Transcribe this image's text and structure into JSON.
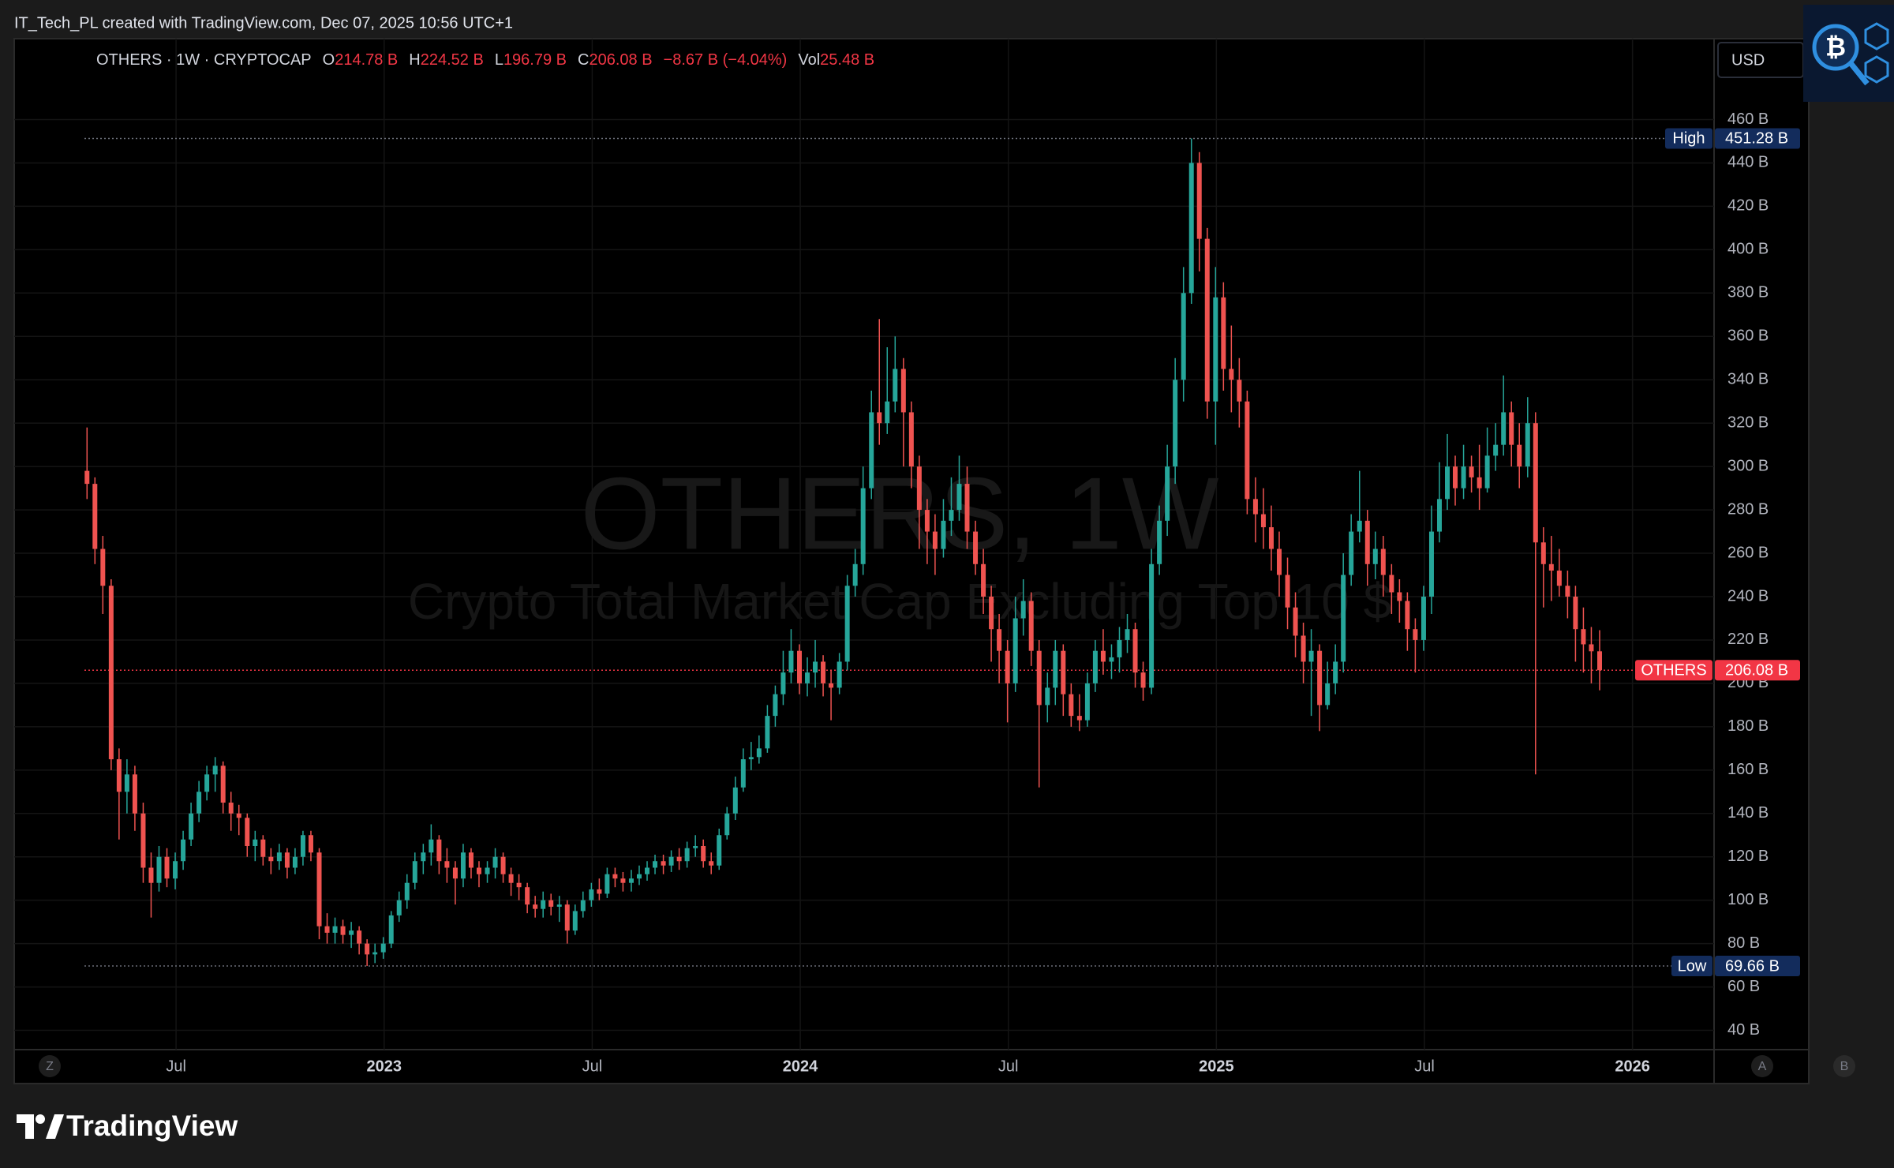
{
  "header": {
    "author_line": "IT_Tech_PL created with TradingView.com, Dec 07, 2025 10:56 UTC+1",
    "logo_symbol": "₿"
  },
  "legend": {
    "symbol": "OTHERS · 1W · CRYPTOCAP",
    "open_label": "O",
    "open": "214.78 B",
    "high_label": "H",
    "high": "224.52 B",
    "low_label": "L",
    "low": "196.79 B",
    "close_label": "C",
    "close": "206.08 B",
    "change": "−8.67 B (−4.04%)",
    "volume_label": "Vol",
    "volume": "25.48 B"
  },
  "toolbar": {
    "currency": "USD",
    "buttons": [
      "Z",
      "A",
      "B"
    ]
  },
  "footer": {
    "brand": "TradingView"
  },
  "chart_data": {
    "type": "candlestick",
    "title": "OTHERS, 1W",
    "subtitle": "Crypto Total Market Cap Excluding Top 10 $",
    "up_color": "#26a69a",
    "down_color": "#ef5350",
    "grid": true,
    "xlim": [
      2022.111,
      2026.196
    ],
    "xticks": [
      {
        "value": 2022.5,
        "label": "Jul"
      },
      2023,
      {
        "value": 2023.5,
        "label": "Jul"
      },
      2024,
      {
        "value": 2024.5,
        "label": "Jul"
      },
      2025,
      {
        "value": 2025.5,
        "label": "Jul"
      },
      2026
    ],
    "ylim": [
      31.1,
      497.3
    ],
    "yticks": [
      {
        "value": 40,
        "label": "40 B"
      },
      {
        "value": 60,
        "label": "60 B"
      },
      {
        "value": 80,
        "label": "80 B"
      },
      {
        "value": 100,
        "label": "100 B"
      },
      {
        "value": 120,
        "label": "120 B"
      },
      {
        "value": 140,
        "label": "140 B"
      },
      {
        "value": 160,
        "label": "160 B"
      },
      {
        "value": 180,
        "label": "180 B"
      },
      {
        "value": 200,
        "label": "200 B"
      },
      {
        "value": 220,
        "label": "220 B"
      },
      {
        "value": 240,
        "label": "240 B"
      },
      {
        "value": 260,
        "label": "260 B"
      },
      {
        "value": 280,
        "label": "280 B"
      },
      {
        "value": 300,
        "label": "300 B"
      },
      {
        "value": 320,
        "label": "320 B"
      },
      {
        "value": 340,
        "label": "340 B"
      },
      {
        "value": 360,
        "label": "360 B"
      },
      {
        "value": 380,
        "label": "380 B"
      },
      {
        "value": 400,
        "label": "400 B"
      },
      {
        "value": 420,
        "label": "420 B"
      },
      {
        "value": 440,
        "label": "440 B"
      },
      {
        "value": 460,
        "label": "460 B"
      }
    ],
    "high_marker": {
      "label": "High",
      "value": 451.28,
      "value_label": "451.28 B"
    },
    "low_marker": {
      "label": "Low",
      "value": 69.66,
      "value_label": "69.66 B"
    },
    "last_price": {
      "label": "OTHERS",
      "value": 206.08,
      "value_label": "206.08 B"
    },
    "x": [
      2022.286,
      2022.305,
      2022.324,
      2022.344,
      2022.363,
      2022.382,
      2022.401,
      2022.421,
      2022.44,
      2022.459,
      2022.478,
      2022.498,
      2022.517,
      2022.536,
      2022.555,
      2022.574,
      2022.594,
      2022.613,
      2022.632,
      2022.651,
      2022.671,
      2022.69,
      2022.709,
      2022.728,
      2022.748,
      2022.767,
      2022.786,
      2022.805,
      2022.824,
      2022.844,
      2022.863,
      2022.882,
      2022.901,
      2022.921,
      2022.94,
      2022.959,
      2022.978,
      2022.998,
      2023.017,
      2023.036,
      2023.055,
      2023.074,
      2023.094,
      2023.113,
      2023.132,
      2023.151,
      2023.171,
      2023.19,
      2023.209,
      2023.228,
      2023.248,
      2023.267,
      2023.286,
      2023.305,
      2023.324,
      2023.344,
      2023.363,
      2023.382,
      2023.401,
      2023.421,
      2023.44,
      2023.459,
      2023.478,
      2023.498,
      2023.517,
      2023.536,
      2023.555,
      2023.574,
      2023.594,
      2023.613,
      2023.632,
      2023.651,
      2023.671,
      2023.69,
      2023.709,
      2023.728,
      2023.748,
      2023.767,
      2023.786,
      2023.805,
      2023.824,
      2023.844,
      2023.863,
      2023.882,
      2023.901,
      2023.921,
      2023.94,
      2023.959,
      2023.978,
      2023.998,
      2024.017,
      2024.036,
      2024.055,
      2024.074,
      2024.094,
      2024.113,
      2024.132,
      2024.151,
      2024.171,
      2024.19,
      2024.209,
      2024.228,
      2024.248,
      2024.267,
      2024.286,
      2024.305,
      2024.324,
      2024.344,
      2024.363,
      2024.382,
      2024.401,
      2024.421,
      2024.44,
      2024.459,
      2024.478,
      2024.498,
      2024.517,
      2024.536,
      2024.555,
      2024.574,
      2024.594,
      2024.613,
      2024.632,
      2024.651,
      2024.671,
      2024.69,
      2024.709,
      2024.728,
      2024.748,
      2024.767,
      2024.786,
      2024.805,
      2024.824,
      2024.844,
      2024.863,
      2024.882,
      2024.901,
      2024.921,
      2024.94,
      2024.959,
      2024.978,
      2024.998,
      2025.017,
      2025.036,
      2025.055,
      2025.074,
      2025.094,
      2025.113,
      2025.132,
      2025.151,
      2025.171,
      2025.19,
      2025.209,
      2025.228,
      2025.248,
      2025.267,
      2025.286,
      2025.305,
      2025.324,
      2025.344,
      2025.363,
      2025.382,
      2025.401,
      2025.421,
      2025.44,
      2025.459,
      2025.478,
      2025.498,
      2025.517,
      2025.536,
      2025.555,
      2025.574,
      2025.594,
      2025.613,
      2025.632,
      2025.651,
      2025.671,
      2025.69,
      2025.709,
      2025.728,
      2025.748,
      2025.767,
      2025.786,
      2025.805,
      2025.824,
      2025.844,
      2025.863,
      2025.882,
      2025.901,
      2025.921
    ],
    "open": [
      298,
      292,
      262,
      245,
      165,
      150,
      158,
      140,
      115,
      108,
      120,
      110,
      118,
      128,
      140,
      150,
      158,
      162,
      145,
      140,
      138,
      125,
      128,
      120,
      118,
      122,
      115,
      120,
      130,
      122,
      88,
      85,
      88,
      84,
      86,
      80,
      75,
      76,
      80,
      93,
      100,
      108,
      118,
      122,
      128,
      118,
      115,
      110,
      122,
      115,
      112,
      115,
      120,
      112,
      108,
      106,
      98,
      96,
      100,
      97,
      98,
      86,
      95,
      100,
      105,
      103,
      112,
      110,
      108,
      110,
      112,
      115,
      118,
      116,
      120,
      118,
      124,
      125,
      118,
      116,
      130,
      140,
      152,
      165,
      166,
      170,
      185,
      195,
      205,
      215,
      200,
      205,
      210,
      200,
      198,
      210,
      245,
      255,
      290,
      325,
      320,
      330,
      345,
      325,
      300,
      280,
      270,
      262,
      275,
      280,
      292,
      270,
      255,
      240,
      225,
      215,
      200,
      230,
      238,
      215,
      190,
      198,
      215,
      195,
      185,
      183,
      200,
      215,
      210,
      212,
      220,
      225,
      205,
      198,
      255,
      275,
      300,
      340,
      380,
      440,
      405,
      330,
      378,
      345,
      340,
      330,
      285,
      278,
      272,
      262,
      250,
      235,
      222,
      210,
      215,
      190,
      200,
      210,
      250,
      270,
      275,
      255,
      262,
      250,
      242,
      238,
      225,
      220,
      240,
      270,
      285,
      300,
      290,
      300,
      295,
      290,
      305,
      310,
      325,
      310,
      300,
      320,
      265,
      255,
      252,
      245,
      240,
      225,
      218,
      214.78
    ],
    "high": [
      318,
      295,
      268,
      248,
      170,
      165,
      162,
      145,
      122,
      125,
      124,
      122,
      132,
      145,
      155,
      162,
      166,
      164,
      150,
      144,
      140,
      132,
      130,
      124,
      126,
      124,
      124,
      132,
      132,
      124,
      94,
      92,
      91,
      90,
      88,
      82,
      80,
      83,
      95,
      104,
      112,
      122,
      126,
      135,
      130,
      124,
      118,
      126,
      124,
      118,
      118,
      124,
      122,
      115,
      112,
      108,
      102,
      104,
      103,
      102,
      100,
      98,
      104,
      108,
      110,
      115,
      115,
      113,
      114,
      116,
      118,
      121,
      121,
      123,
      124,
      127,
      130,
      128,
      122,
      133,
      143,
      157,
      170,
      173,
      176,
      190,
      199,
      215,
      225,
      218,
      212,
      220,
      213,
      206,
      214,
      250,
      262,
      300,
      335,
      368,
      355,
      360,
      350,
      330,
      305,
      285,
      278,
      285,
      295,
      305,
      300,
      275,
      262,
      245,
      232,
      220,
      240,
      248,
      242,
      220,
      205,
      220,
      218,
      200,
      195,
      205,
      220,
      225,
      218,
      226,
      232,
      228,
      210,
      262,
      282,
      310,
      350,
      392,
      451.28,
      445,
      410,
      392,
      385,
      365,
      350,
      335,
      295,
      290,
      282,
      270,
      258,
      242,
      228,
      225,
      218,
      210,
      218,
      260,
      278,
      298,
      280,
      270,
      268,
      255,
      248,
      242,
      230,
      245,
      282,
      302,
      315,
      305,
      310,
      305,
      310,
      318,
      320,
      342,
      330,
      320,
      332,
      325,
      272,
      268,
      262,
      252,
      245,
      235,
      226,
      224.52
    ],
    "low": [
      285,
      255,
      232,
      160,
      128,
      140,
      132,
      108,
      92,
      104,
      106,
      105,
      114,
      125,
      136,
      146,
      150,
      140,
      132,
      130,
      120,
      118,
      116,
      112,
      114,
      110,
      112,
      116,
      118,
      82,
      80,
      80,
      80,
      78,
      75,
      69.66,
      71,
      73,
      78,
      90,
      96,
      105,
      112,
      116,
      112,
      108,
      98,
      106,
      110,
      106,
      108,
      110,
      108,
      102,
      100,
      94,
      92,
      92,
      93,
      90,
      80,
      84,
      92,
      97,
      100,
      101,
      106,
      104,
      104,
      107,
      109,
      112,
      112,
      113,
      114,
      115,
      120,
      115,
      112,
      114,
      128,
      137,
      150,
      160,
      163,
      168,
      180,
      190,
      200,
      195,
      194,
      198,
      194,
      183,
      195,
      206,
      240,
      250,
      285,
      310,
      315,
      325,
      300,
      290,
      262,
      255,
      250,
      258,
      268,
      275,
      262,
      250,
      232,
      210,
      200,
      182,
      196,
      222,
      208,
      152,
      182,
      190,
      185,
      180,
      178,
      180,
      196,
      204,
      202,
      205,
      214,
      198,
      192,
      195,
      250,
      268,
      292,
      330,
      375,
      390,
      322,
      310,
      335,
      325,
      318,
      278,
      265,
      262,
      252,
      240,
      225,
      212,
      200,
      185,
      178,
      188,
      195,
      205,
      245,
      265,
      245,
      248,
      240,
      232,
      228,
      215,
      205,
      215,
      232,
      265,
      280,
      282,
      285,
      288,
      280,
      288,
      298,
      305,
      300,
      290,
      295,
      158,
      235,
      238,
      240,
      230,
      210,
      205,
      200,
      196.79
    ],
    "close": [
      292,
      262,
      245,
      165,
      150,
      158,
      140,
      115,
      108,
      120,
      110,
      118,
      128,
      140,
      150,
      158,
      162,
      145,
      140,
      138,
      125,
      128,
      120,
      118,
      122,
      115,
      120,
      130,
      122,
      88,
      85,
      88,
      84,
      86,
      80,
      75,
      76,
      80,
      93,
      100,
      108,
      118,
      122,
      128,
      118,
      115,
      110,
      122,
      115,
      112,
      115,
      120,
      112,
      108,
      106,
      98,
      96,
      100,
      97,
      98,
      86,
      95,
      100,
      105,
      103,
      112,
      110,
      108,
      110,
      112,
      115,
      118,
      116,
      120,
      118,
      124,
      125,
      118,
      116,
      130,
      140,
      152,
      165,
      166,
      170,
      185,
      195,
      205,
      215,
      200,
      205,
      210,
      200,
      198,
      210,
      245,
      255,
      290,
      325,
      320,
      330,
      345,
      325,
      300,
      280,
      270,
      262,
      275,
      280,
      292,
      270,
      255,
      240,
      225,
      215,
      200,
      230,
      238,
      215,
      190,
      198,
      215,
      195,
      185,
      183,
      200,
      215,
      210,
      212,
      220,
      225,
      205,
      198,
      255,
      275,
      300,
      340,
      380,
      440,
      405,
      330,
      378,
      345,
      340,
      330,
      285,
      278,
      272,
      262,
      250,
      235,
      222,
      210,
      215,
      190,
      200,
      210,
      250,
      270,
      275,
      255,
      262,
      250,
      242,
      238,
      225,
      220,
      240,
      270,
      285,
      300,
      290,
      300,
      295,
      290,
      305,
      310,
      325,
      310,
      300,
      320,
      265,
      255,
      252,
      245,
      240,
      225,
      218,
      214.78,
      206.08
    ]
  }
}
